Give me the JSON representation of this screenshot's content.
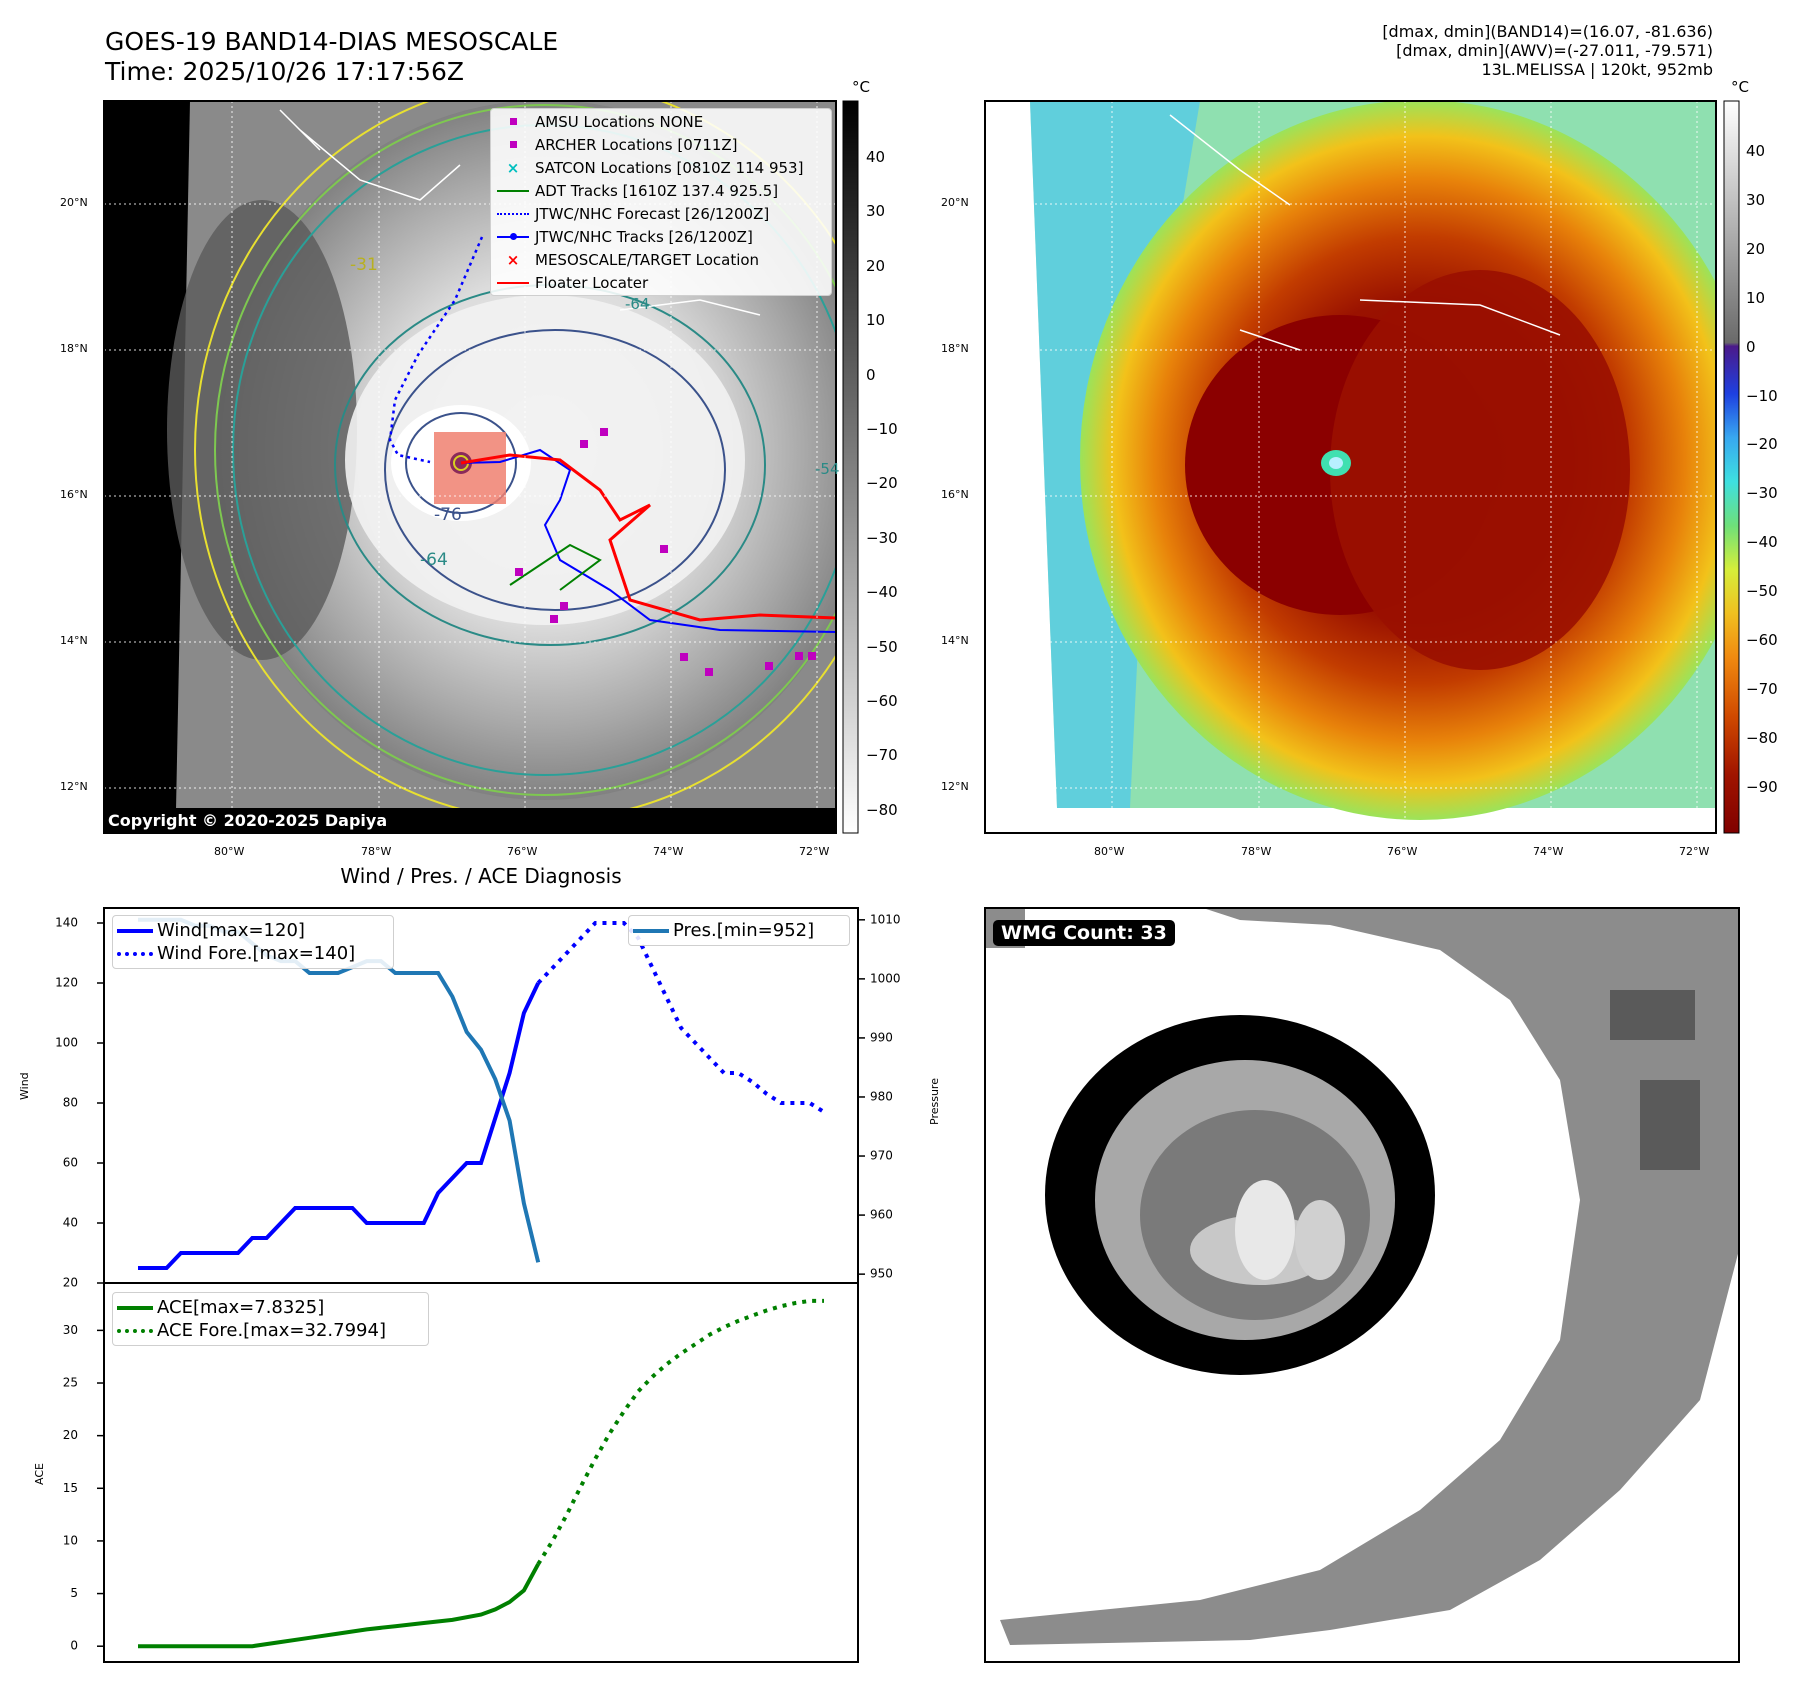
{
  "header": {
    "title_line1": "GOES-19 BAND14-DIAS MESOSCALE",
    "title_line2": "Time: 2025/10/26 17:17:56Z",
    "info_line1": "[dmax, dmin](BAND14)=(16.07, -81.636)",
    "info_line2": "[dmax, dmin](AWV)=(-27.011, -79.571)",
    "info_line3": "13L.MELISSA | 120kt, 952mb"
  },
  "map_panel": {
    "lat_labels": [
      "20°N",
      "18°N",
      "16°N",
      "14°N",
      "12°N"
    ],
    "lon_labels": [
      "80°W",
      "78°W",
      "76°W",
      "74°W",
      "72°W"
    ],
    "contour_labels": [
      "-76",
      "-64",
      "-31",
      "-64",
      "-54"
    ],
    "copyright": "Copyright © 2020-2025 Dapiya",
    "colorbar_unit": "°C",
    "colorbar_ticks": [
      "40",
      "30",
      "20",
      "10",
      "0",
      "−10",
      "−20",
      "−30",
      "−40",
      "−50",
      "−60",
      "−70",
      "−80"
    ],
    "legend": [
      {
        "label": "AMSU Locations NONE",
        "icon": "square-marker",
        "color": "#bf00bf"
      },
      {
        "label": "ARCHER Locations [0711Z]",
        "icon": "square-marker",
        "color": "#bf00bf"
      },
      {
        "label": "SATCON Locations [0810Z 114 953]",
        "icon": "x-marker",
        "color": "#00bfbf"
      },
      {
        "label": "ADT Tracks [1610Z 137.4 925.5]",
        "icon": "solid-line",
        "color": "#008000"
      },
      {
        "label": "JTWC/NHC Forecast [26/1200Z]",
        "icon": "dotted-line",
        "color": "#0000ff"
      },
      {
        "label": "JTWC/NHC Tracks [26/1200Z]",
        "icon": "line-dot",
        "color": "#0000ff"
      },
      {
        "label": "MESOSCALE/TARGET Location",
        "icon": "x-marker",
        "color": "#ff0000"
      },
      {
        "label": "Floater Locater",
        "icon": "solid-line",
        "color": "#ff0000"
      }
    ]
  },
  "awv_panel": {
    "lat_labels": [
      "20°N",
      "18°N",
      "16°N",
      "14°N",
      "12°N"
    ],
    "lon_labels": [
      "80°W",
      "78°W",
      "76°W",
      "74°W",
      "72°W"
    ],
    "colorbar_unit": "°C",
    "colorbar_ticks": [
      "40",
      "30",
      "20",
      "10",
      "0",
      "−10",
      "−20",
      "−30",
      "−40",
      "−50",
      "−60",
      "−70",
      "−80",
      "−90"
    ]
  },
  "wmg_panel": {
    "count_label": "WMG Count: 33"
  },
  "diagnosis": {
    "title": "Wind / Pres. / ACE Diagnosis",
    "wind_ylabel": "Wind",
    "pres_ylabel": "Pressure",
    "ace_ylabel": "ACE",
    "legend_wind": "Wind[max=120]",
    "legend_wind_fore": "Wind Fore.[max=140]",
    "legend_pres": "Pres.[min=952]",
    "legend_ace": "ACE[max=7.8325]",
    "legend_ace_fore": "ACE Fore.[max=32.7994]"
  },
  "chart_data": [
    {
      "type": "line",
      "title": "Wind / Pres. / ACE Diagnosis",
      "ylabel": "Wind",
      "y2label": "Pressure",
      "ylim": [
        20,
        145
      ],
      "y2lim": [
        948.5,
        1012
      ],
      "yticks": [
        20,
        40,
        60,
        80,
        100,
        120,
        140
      ],
      "y2ticks": [
        950,
        960,
        970,
        980,
        990,
        1000,
        1010
      ],
      "x": [
        0,
        1,
        2,
        3,
        4,
        5,
        6,
        7,
        8,
        9,
        10,
        11,
        12,
        13,
        14,
        15,
        16,
        17,
        18,
        19,
        20,
        21,
        22,
        23,
        24,
        25,
        26,
        27,
        28,
        29,
        30,
        31,
        32,
        33,
        34,
        35,
        36,
        37,
        38,
        39,
        40,
        41,
        42,
        43,
        44,
        45,
        46,
        47,
        48
      ],
      "series": [
        {
          "name": "Wind[max=120]",
          "axis": "left",
          "style": "solid",
          "color": "#0000ff",
          "x": [
            0,
            2,
            3,
            4,
            5,
            6,
            7,
            8,
            9,
            10,
            11,
            12,
            13,
            14,
            15,
            16,
            17,
            18,
            19,
            20,
            21,
            22,
            23,
            24,
            25,
            26,
            27,
            28
          ],
          "values": [
            25,
            25,
            30,
            30,
            30,
            30,
            30,
            35,
            35,
            40,
            45,
            45,
            45,
            45,
            45,
            40,
            40,
            40,
            40,
            40,
            50,
            55,
            60,
            60,
            75,
            90,
            110,
            120
          ]
        },
        {
          "name": "Wind Fore.[max=140]",
          "axis": "left",
          "style": "dotted",
          "color": "#0000ff",
          "x": [
            28,
            29,
            30,
            31,
            32,
            33,
            34,
            35,
            36,
            37,
            38,
            39,
            40,
            41,
            42,
            43,
            44,
            45,
            46,
            47,
            48
          ],
          "values": [
            120,
            125,
            130,
            135,
            140,
            140,
            140,
            135,
            125,
            115,
            105,
            100,
            95,
            90,
            90,
            87,
            83,
            80,
            80,
            80,
            77
          ]
        },
        {
          "name": "Pres.[min=952]",
          "axis": "right",
          "style": "solid",
          "color": "#1f77b4",
          "x": [
            0,
            1,
            2,
            3,
            4,
            5,
            6,
            7,
            8,
            9,
            10,
            11,
            12,
            13,
            14,
            15,
            16,
            17,
            18,
            19,
            20,
            21,
            22,
            23,
            24,
            25,
            26,
            27,
            28
          ],
          "values": [
            1010,
            1010,
            1010,
            1010,
            1009,
            1009,
            1008,
            1008,
            1006,
            1004,
            1003,
            1003,
            1001,
            1001,
            1001,
            1002,
            1003,
            1003,
            1001,
            1001,
            1001,
            1001,
            997,
            991,
            988,
            983,
            976,
            962,
            952
          ]
        }
      ]
    },
    {
      "type": "line",
      "ylabel": "ACE",
      "ylim": [
        -1.5,
        34.5
      ],
      "yticks": [
        0,
        5,
        10,
        15,
        20,
        25,
        30
      ],
      "x": [
        0,
        1,
        2,
        3,
        4,
        5,
        6,
        7,
        8,
        9,
        10,
        11,
        12,
        13,
        14,
        15,
        16,
        17,
        18,
        19,
        20,
        21,
        22,
        23,
        24,
        25,
        26,
        27,
        28,
        29,
        30,
        31,
        32,
        33,
        34,
        35,
        36,
        37,
        38,
        39,
        40,
        41,
        42,
        43,
        44,
        45,
        46,
        47,
        48
      ],
      "series": [
        {
          "name": "ACE[max=7.8325]",
          "style": "solid",
          "color": "#008000",
          "x": [
            0,
            2,
            4,
            6,
            8,
            10,
            12,
            14,
            16,
            18,
            20,
            22,
            24,
            25,
            26,
            27,
            28
          ],
          "values": [
            0,
            0,
            0,
            0,
            0,
            0.4,
            0.8,
            1.2,
            1.6,
            1.9,
            2.2,
            2.5,
            3.0,
            3.5,
            4.2,
            5.3,
            7.8
          ]
        },
        {
          "name": "ACE Fore.[max=32.7994]",
          "style": "dotted",
          "color": "#008000",
          "x": [
            28,
            29,
            30,
            31,
            32,
            33,
            34,
            35,
            36,
            37,
            38,
            39,
            40,
            41,
            42,
            43,
            44,
            45,
            46,
            47,
            48
          ],
          "values": [
            7.8,
            10,
            12.5,
            15.2,
            17.8,
            20.2,
            22.3,
            24.2,
            25.6,
            26.8,
            27.8,
            28.7,
            29.6,
            30.3,
            30.9,
            31.4,
            31.9,
            32.3,
            32.6,
            32.8,
            32.8
          ]
        }
      ]
    }
  ]
}
